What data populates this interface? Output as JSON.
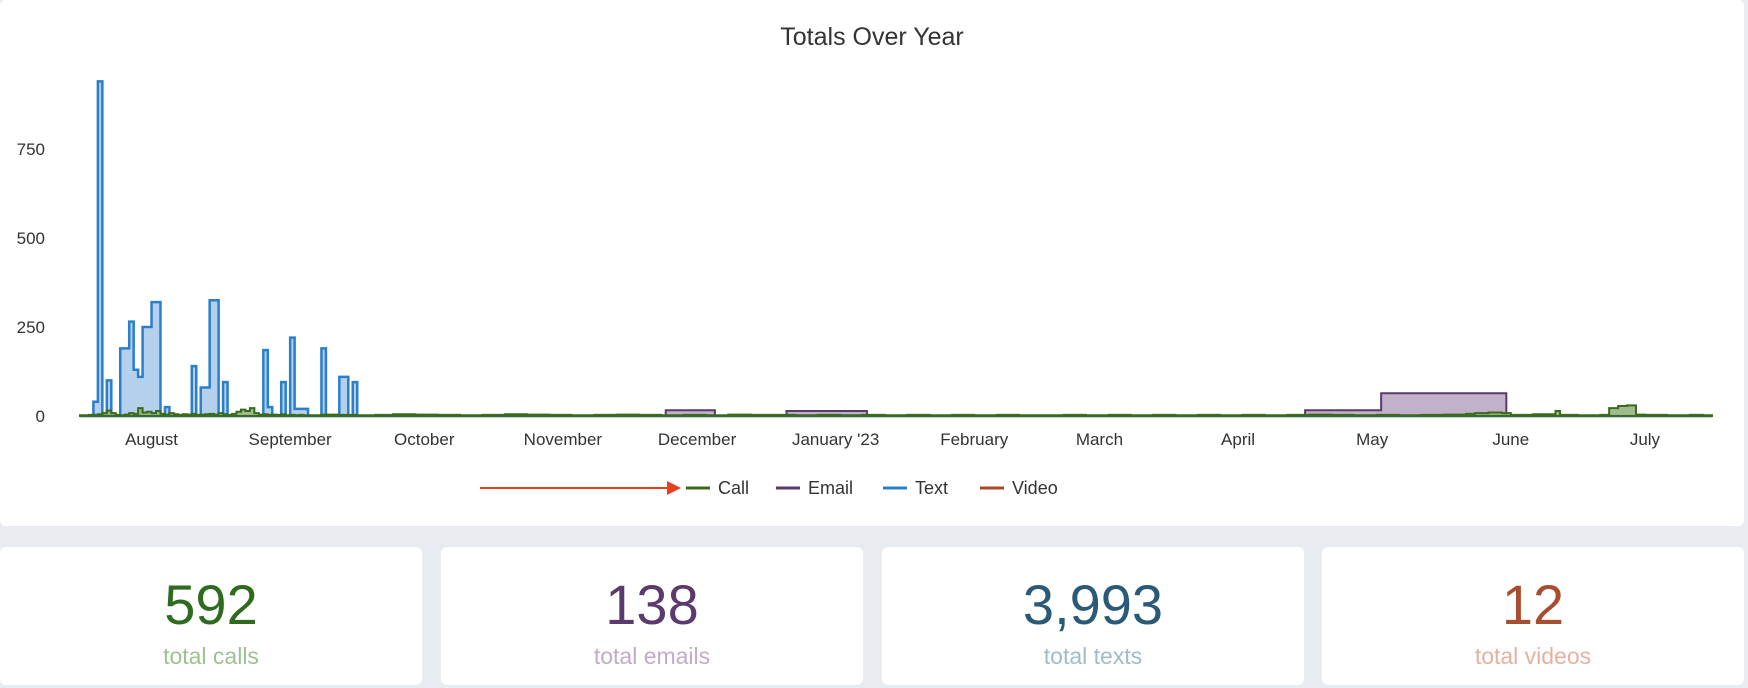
{
  "chart_data": {
    "type": "area",
    "title": "Totals Over Year",
    "xlabel": "",
    "ylabel": "",
    "x_tick_labels": [
      "August",
      "September",
      "October",
      "November",
      "December",
      "January '23",
      "February",
      "March",
      "April",
      "May",
      "June",
      "July"
    ],
    "ylim": [
      0,
      1000
    ],
    "y_ticks": [
      0,
      250,
      500,
      750
    ],
    "x_range_days": [
      0,
      365
    ],
    "x_tick_days": [
      16,
      47,
      77,
      108,
      138,
      169,
      200,
      228,
      259,
      289,
      320,
      350
    ],
    "legend_position": "bottom-center",
    "grid": false,
    "series": [
      {
        "name": "Call",
        "color": "#3a6b1a",
        "fill": "#8fb07a",
        "points": [
          [
            0,
            2
          ],
          [
            2,
            3
          ],
          [
            4,
            5
          ],
          [
            5,
            8
          ],
          [
            6,
            15
          ],
          [
            7,
            8
          ],
          [
            8,
            3
          ],
          [
            9,
            2
          ],
          [
            10,
            4
          ],
          [
            11,
            8
          ],
          [
            12,
            6
          ],
          [
            13,
            22
          ],
          [
            14,
            10
          ],
          [
            15,
            12
          ],
          [
            16,
            8
          ],
          [
            17,
            14
          ],
          [
            18,
            6
          ],
          [
            19,
            4
          ],
          [
            20,
            8
          ],
          [
            21,
            5
          ],
          [
            22,
            3
          ],
          [
            23,
            5
          ],
          [
            24,
            4
          ],
          [
            25,
            6
          ],
          [
            26,
            3
          ],
          [
            27,
            4
          ],
          [
            28,
            5
          ],
          [
            29,
            6
          ],
          [
            30,
            4
          ],
          [
            31,
            8
          ],
          [
            32,
            5
          ],
          [
            33,
            3
          ],
          [
            34,
            6
          ],
          [
            35,
            12
          ],
          [
            36,
            18
          ],
          [
            37,
            14
          ],
          [
            38,
            22
          ],
          [
            39,
            8
          ],
          [
            40,
            4
          ],
          [
            41,
            5
          ],
          [
            42,
            3
          ],
          [
            43,
            4
          ],
          [
            44,
            3
          ],
          [
            45,
            5
          ],
          [
            46,
            2
          ],
          [
            47,
            3
          ],
          [
            48,
            2
          ],
          [
            49,
            3
          ],
          [
            50,
            2
          ],
          [
            54,
            4
          ],
          [
            58,
            3
          ],
          [
            62,
            2
          ],
          [
            66,
            3
          ],
          [
            70,
            5
          ],
          [
            75,
            4
          ],
          [
            80,
            3
          ],
          [
            85,
            2
          ],
          [
            90,
            3
          ],
          [
            95,
            5
          ],
          [
            100,
            4
          ],
          [
            105,
            3
          ],
          [
            110,
            2
          ],
          [
            115,
            3
          ],
          [
            120,
            4
          ],
          [
            125,
            3
          ],
          [
            130,
            2
          ],
          [
            135,
            3
          ],
          [
            140,
            2
          ],
          [
            145,
            4
          ],
          [
            150,
            3
          ],
          [
            155,
            3
          ],
          [
            160,
            2
          ],
          [
            165,
            3
          ],
          [
            170,
            2
          ],
          [
            175,
            3
          ],
          [
            180,
            2
          ],
          [
            185,
            3
          ],
          [
            190,
            2
          ],
          [
            195,
            3
          ],
          [
            200,
            2
          ],
          [
            205,
            3
          ],
          [
            210,
            2
          ],
          [
            215,
            2
          ],
          [
            220,
            3
          ],
          [
            225,
            2
          ],
          [
            230,
            3
          ],
          [
            235,
            2
          ],
          [
            240,
            3
          ],
          [
            245,
            2
          ],
          [
            250,
            3
          ],
          [
            255,
            2
          ],
          [
            260,
            3
          ],
          [
            265,
            2
          ],
          [
            270,
            3
          ],
          [
            275,
            4
          ],
          [
            280,
            3
          ],
          [
            285,
            2
          ],
          [
            290,
            3
          ],
          [
            295,
            2
          ],
          [
            300,
            3
          ],
          [
            305,
            4
          ],
          [
            310,
            6
          ],
          [
            312,
            8
          ],
          [
            315,
            10
          ],
          [
            318,
            8
          ],
          [
            320,
            3
          ],
          [
            325,
            5
          ],
          [
            330,
            14
          ],
          [
            331,
            3
          ],
          [
            335,
            2
          ],
          [
            340,
            3
          ],
          [
            342,
            22
          ],
          [
            344,
            28
          ],
          [
            346,
            30
          ],
          [
            348,
            4
          ],
          [
            350,
            3
          ],
          [
            355,
            2
          ],
          [
            360,
            3
          ],
          [
            363,
            2
          ],
          [
            365,
            2
          ]
        ]
      },
      {
        "name": "Email",
        "color": "#5b3a6e",
        "fill": "#b7a3c1",
        "points": [
          [
            0,
            0
          ],
          [
            130,
            0
          ],
          [
            131,
            16
          ],
          [
            141,
            16
          ],
          [
            142,
            0
          ],
          [
            157,
            0
          ],
          [
            158,
            14
          ],
          [
            175,
            14
          ],
          [
            176,
            0
          ],
          [
            273,
            0
          ],
          [
            274,
            16
          ],
          [
            290,
            16
          ],
          [
            291,
            64
          ],
          [
            318,
            64
          ],
          [
            319,
            0
          ],
          [
            365,
            0
          ]
        ]
      },
      {
        "name": "Text",
        "color": "#2a7fcc",
        "fill": "#a8c8ea",
        "points": [
          [
            0,
            0
          ],
          [
            2,
            0
          ],
          [
            3,
            40
          ],
          [
            4,
            940
          ],
          [
            5,
            0
          ],
          [
            6,
            100
          ],
          [
            7,
            0
          ],
          [
            9,
            190
          ],
          [
            11,
            265
          ],
          [
            12,
            130
          ],
          [
            13,
            110
          ],
          [
            14,
            250
          ],
          [
            16,
            320
          ],
          [
            18,
            0
          ],
          [
            19,
            25
          ],
          [
            20,
            0
          ],
          [
            25,
            140
          ],
          [
            26,
            0
          ],
          [
            27,
            80
          ],
          [
            29,
            325
          ],
          [
            31,
            0
          ],
          [
            32,
            95
          ],
          [
            33,
            0
          ],
          [
            41,
            185
          ],
          [
            42,
            25
          ],
          [
            43,
            0
          ],
          [
            44,
            0
          ],
          [
            45,
            95
          ],
          [
            46,
            0
          ],
          [
            47,
            220
          ],
          [
            48,
            20
          ],
          [
            51,
            0
          ],
          [
            53,
            0
          ],
          [
            54,
            190
          ],
          [
            55,
            0
          ],
          [
            58,
            110
          ],
          [
            60,
            0
          ],
          [
            61,
            95
          ],
          [
            62,
            0
          ],
          [
            365,
            0
          ]
        ]
      },
      {
        "name": "Video",
        "color": "#b0482a",
        "fill": "#d9a08e",
        "points": [
          [
            0,
            0
          ],
          [
            365,
            0
          ]
        ]
      }
    ]
  },
  "legend": {
    "items": [
      {
        "label": "Call",
        "color": "#3a6b1a"
      },
      {
        "label": "Email",
        "color": "#5b3a6e"
      },
      {
        "label": "Text",
        "color": "#2a7fcc"
      },
      {
        "label": "Video",
        "color": "#b0482a"
      }
    ],
    "arrow_color": "#e8401c"
  },
  "stats": [
    {
      "value": "592",
      "label": "total calls",
      "value_color": "#2f6b1f",
      "label_color": "#9cc291"
    },
    {
      "value": "138",
      "label": "total emails",
      "value_color": "#5d3a6d",
      "label_color": "#c1abc9"
    },
    {
      "value": "3,993",
      "label": "total texts",
      "value_color": "#2a5a78",
      "label_color": "#9fbccc"
    },
    {
      "value": "12",
      "label": "total videos",
      "value_color": "#a84e30",
      "label_color": "#e3b2a0"
    }
  ]
}
